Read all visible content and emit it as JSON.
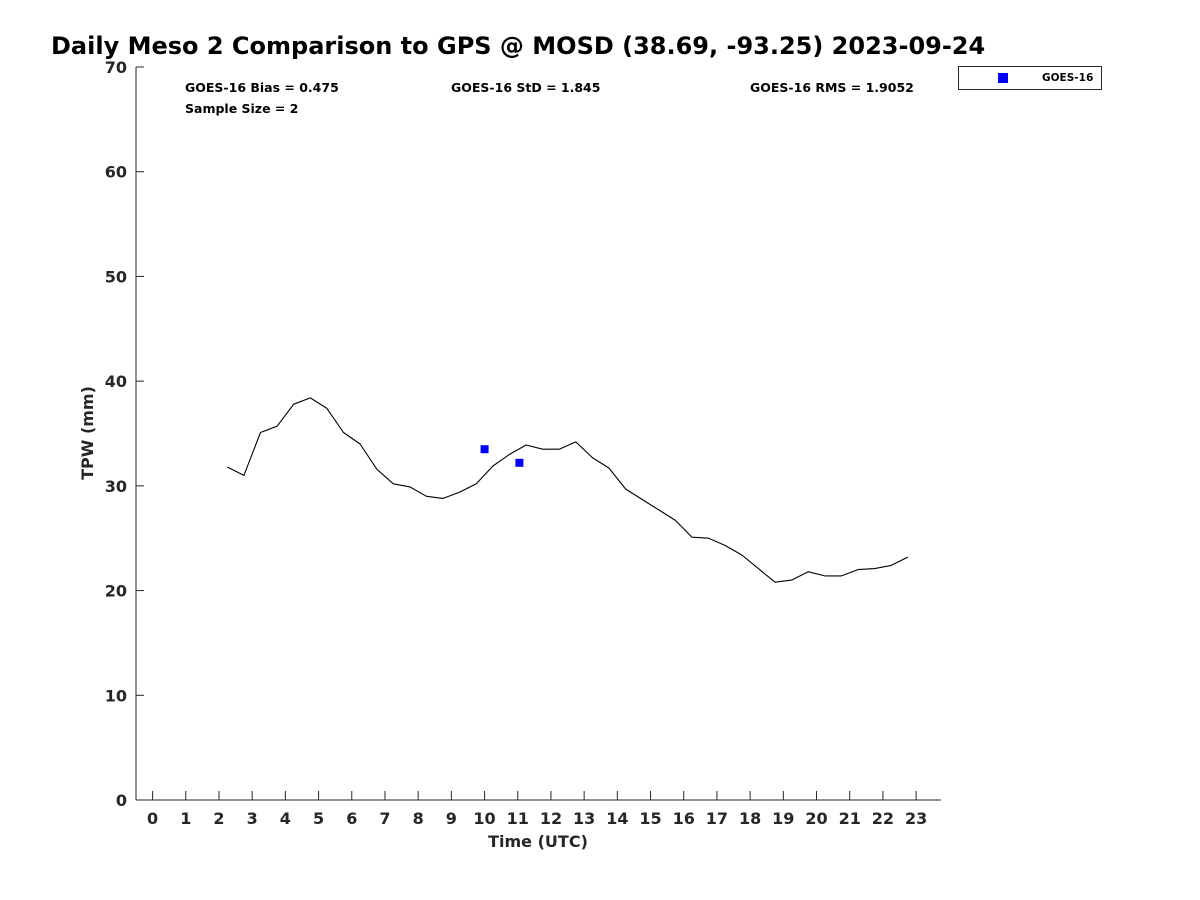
{
  "chart_data": {
    "type": "line",
    "title": "Daily Meso 2 Comparison to GPS @ MOSD (38.69, -93.25) 2023-09-24",
    "xlabel": "Time (UTC)",
    "ylabel": "TPW (mm)",
    "xlim": [
      -0.5,
      23.75
    ],
    "ylim": [
      0,
      70
    ],
    "xticks": [
      0,
      1,
      2,
      3,
      4,
      5,
      6,
      7,
      8,
      9,
      10,
      11,
      12,
      13,
      14,
      15,
      16,
      17,
      18,
      19,
      20,
      21,
      22,
      23
    ],
    "yticks": [
      0,
      10,
      20,
      30,
      40,
      50,
      60,
      70
    ],
    "grid": false,
    "legend_position": "top-right (outside)",
    "stats": {
      "bias": "GOES-16 Bias = 0.475",
      "std": "GOES-16 StD = 1.845",
      "rms": "GOES-16 RMS = 1.9052",
      "sample": "Sample Size = 2"
    },
    "series": [
      {
        "kind": "line",
        "color": "#000000",
        "x": [
          2.25,
          2.75,
          3.25,
          3.75,
          4.25,
          4.75,
          5.25,
          5.75,
          6.25,
          6.75,
          7.25,
          7.75,
          8.25,
          8.75,
          9.25,
          9.75,
          10.25,
          10.75,
          11.25,
          11.75,
          12.25,
          12.75,
          13.25,
          13.75,
          14.25,
          14.75,
          15.25,
          15.75,
          16.25,
          16.75,
          17.25,
          17.75,
          18.25,
          18.75,
          19.25,
          19.75,
          20.25,
          20.75,
          21.25,
          21.75,
          22.25,
          22.75
        ],
        "y": [
          31.8,
          31.0,
          35.1,
          35.7,
          37.8,
          38.4,
          37.4,
          35.1,
          34.0,
          31.6,
          30.2,
          29.9,
          29.0,
          28.8,
          29.4,
          30.2,
          31.9,
          33.0,
          33.9,
          33.5,
          33.5,
          34.2,
          32.7,
          31.7,
          29.7,
          28.7,
          27.7,
          26.7,
          25.1,
          25.0,
          24.3,
          23.4,
          22.1,
          20.8,
          21.0,
          21.8,
          21.4,
          21.4,
          22.0,
          22.1,
          22.4,
          23.2
        ]
      },
      {
        "name": "GOES-16",
        "kind": "scatter",
        "marker": "square",
        "color": "#0000ff",
        "x": [
          10.0,
          11.05
        ],
        "y": [
          33.5,
          32.2
        ]
      }
    ]
  }
}
